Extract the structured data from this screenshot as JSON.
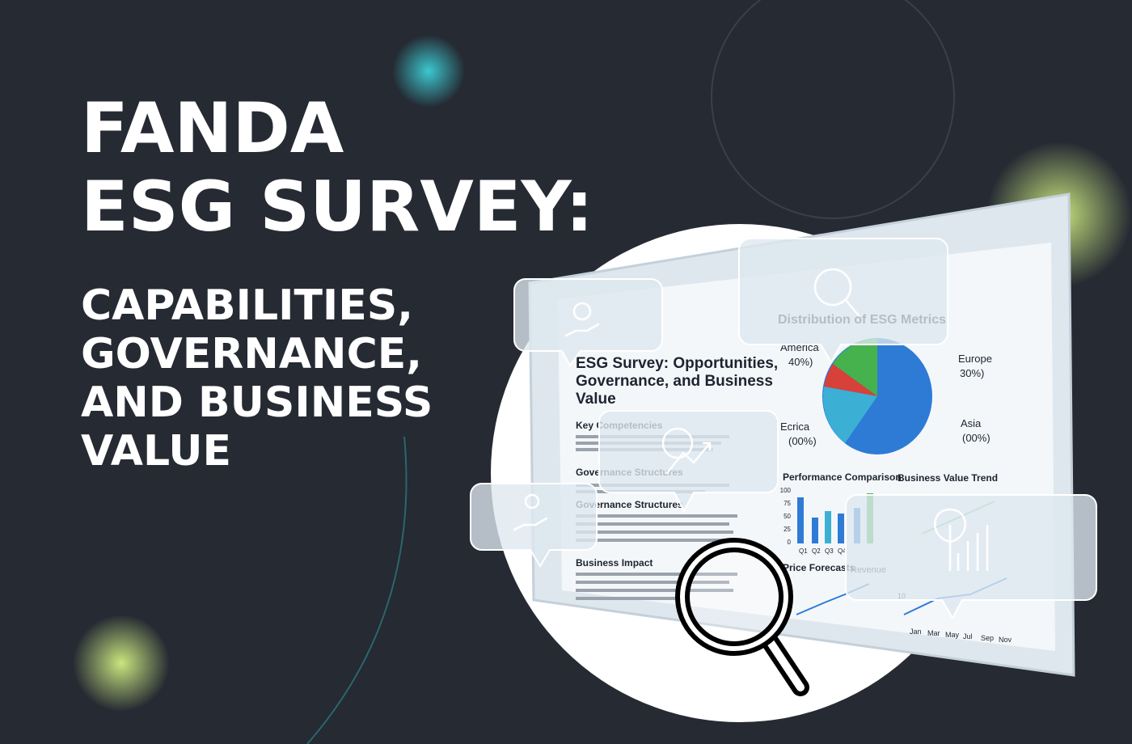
{
  "headline": {
    "title_lines": [
      "FANDA",
      "ESG SURVEY:"
    ],
    "subtitle_lines": [
      "CAPABILITIES,",
      "GOVERNANCE,",
      "AND BUSINESS",
      "VALUE"
    ]
  },
  "document": {
    "title_lines": [
      "ESG Survey: Opportunities,",
      "Governance, and Business",
      "Value"
    ],
    "sections": [
      "Key Competencies",
      "Governance Structures",
      "Governance Structures",
      "Business Impact"
    ]
  },
  "dashboard": {
    "pie_title": "Distribution of ESG Metrics",
    "pie_labels": [
      {
        "name": "America",
        "share": "40%)"
      },
      {
        "name": "Europe",
        "share": "30%)"
      },
      {
        "name": "Ecrica",
        "share": "(00%)"
      },
      {
        "name": "Asia",
        "share": "(00%)"
      }
    ],
    "bar_title": "Performance Comparison",
    "bar_ticks": [
      100,
      75,
      50,
      25,
      0
    ],
    "bar_categories": [
      "Q1",
      "Q2",
      "Q3",
      "Q4"
    ],
    "trend_title": "Business Value Trend",
    "forecast_title": "Price Forecasts",
    "forecast_legend": "Revenue",
    "trend_tick": 10,
    "months": [
      "Jan",
      "Mar",
      "May",
      "Jul",
      "Sep",
      "Nov"
    ]
  }
}
